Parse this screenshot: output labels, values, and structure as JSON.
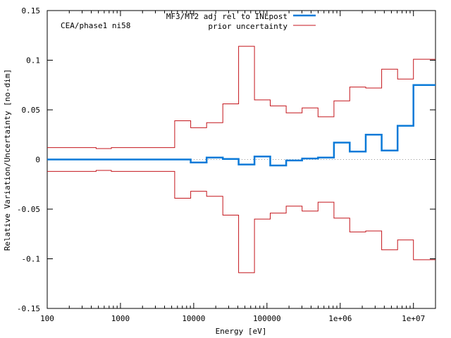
{
  "chart_data": {
    "type": "line",
    "subtype": "step",
    "annotation": "CEA/phase1 ni58",
    "xlabel": "Energy [eV]",
    "ylabel": "Relative Variation/Uncertainty [no-dim]",
    "xscale": "log",
    "xlim": [
      100,
      20000000
    ],
    "ylim": [
      -0.15,
      0.15
    ],
    "xticks": [
      {
        "value": 100,
        "label": "100"
      },
      {
        "value": 1000,
        "label": "1000"
      },
      {
        "value": 10000,
        "label": "10000"
      },
      {
        "value": 100000,
        "label": "100000"
      },
      {
        "value": 1000000,
        "label": "1e+06"
      },
      {
        "value": 10000000,
        "label": "1e+07"
      }
    ],
    "yticks": [
      {
        "value": 0.15,
        "label": "0.15"
      },
      {
        "value": 0.1,
        "label": "0.1"
      },
      {
        "value": 0.05,
        "label": "0.05"
      },
      {
        "value": 0,
        "label": "0"
      },
      {
        "value": -0.05,
        "label": "-0.05"
      },
      {
        "value": -0.1,
        "label": "-0.1"
      },
      {
        "value": -0.15,
        "label": "-0.15"
      }
    ],
    "zero_line": true,
    "legend_position": "top-right",
    "colors": {
      "adj": "#0a7ad8",
      "prior": "#c4161c",
      "axis": "#000000",
      "zero": "#999999"
    },
    "bin_edges": [
      100,
      465,
      750,
      5500,
      9100,
      15000,
      25000,
      41000,
      67500,
      111000,
      183000,
      302000,
      498000,
      821000,
      1350000,
      2230000,
      3680000,
      6070000,
      10000000,
      20000000
    ],
    "series": [
      {
        "name": "MF3/MT2 adj rel to INLpost",
        "style": "step-thick",
        "values": [
          0,
          0,
          0,
          0,
          -0.003,
          0.002,
          0.0005,
          -0.005,
          0.003,
          -0.006,
          -0.001,
          0.001,
          0.002,
          0.017,
          0.008,
          0.025,
          0.009,
          0.034,
          0.075
        ]
      },
      {
        "name": "prior uncertainty",
        "style": "step-thin-symmetric",
        "values": [
          0.012,
          0.011,
          0.012,
          0.039,
          0.032,
          0.037,
          0.056,
          0.114,
          0.06,
          0.054,
          0.047,
          0.052,
          0.043,
          0.059,
          0.073,
          0.072,
          0.091,
          0.081,
          0.101
        ]
      }
    ]
  }
}
